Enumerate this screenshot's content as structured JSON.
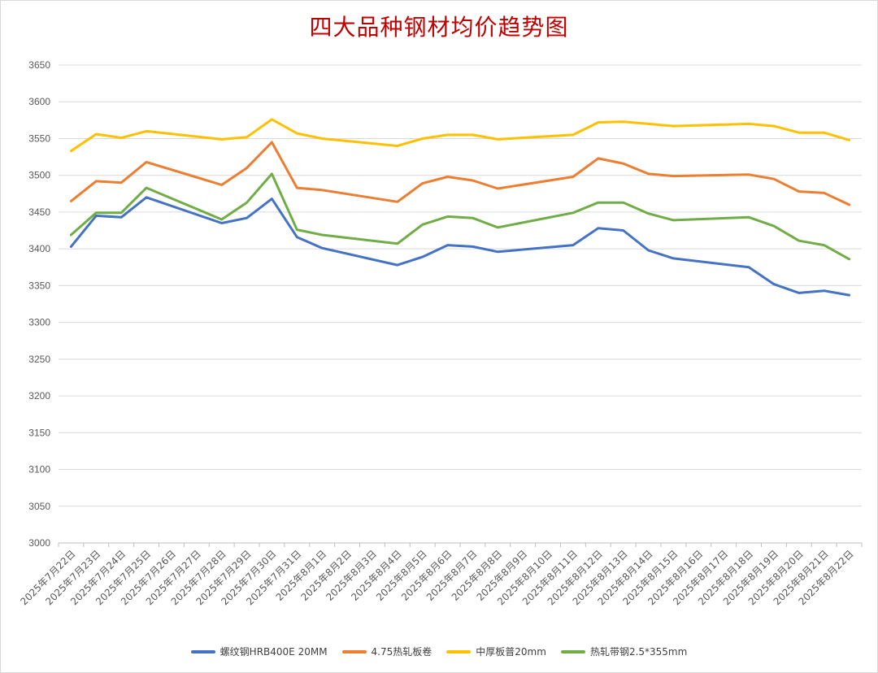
{
  "chart_data": {
    "type": "line",
    "title": "四大品种钢材均价趋势图",
    "xlabel": "",
    "ylabel": "",
    "ylim": [
      3000,
      3650
    ],
    "ytick_step": 50,
    "grid": true,
    "legend_position": "bottom",
    "categories": [
      "2025年7月22日",
      "2025年7月23日",
      "2025年7月24日",
      "2025年7月25日",
      "2025年7月26日",
      "2025年7月27日",
      "2025年7月28日",
      "2025年7月29日",
      "2025年7月30日",
      "2025年7月31日",
      "2025年8月1日",
      "2025年8月2日",
      "2025年8月3日",
      "2025年8月4日",
      "2025年8月5日",
      "2025年8月6日",
      "2025年8月7日",
      "2025年8月8日",
      "2025年8月9日",
      "2025年8月10日",
      "2025年8月11日",
      "2025年8月12日",
      "2025年8月13日",
      "2025年8月14日",
      "2025年8月15日",
      "2025年8月16日",
      "2025年8月17日",
      "2025年8月18日",
      "2025年8月19日",
      "2025年8月20日",
      "2025年8月21日",
      "2025年8月22日"
    ],
    "series": [
      {
        "name": "螺纹钢HRB400E 20MM",
        "color": "#4472c4",
        "points": [
          [
            "2025年7月22日",
            3403
          ],
          [
            "2025年7月23日",
            3445
          ],
          [
            "2025年7月24日",
            3443
          ],
          [
            "2025年7月25日",
            3470
          ],
          [
            "2025年7月28日",
            3435
          ],
          [
            "2025年7月29日",
            3442
          ],
          [
            "2025年7月30日",
            3468
          ],
          [
            "2025年7月31日",
            3416
          ],
          [
            "2025年8月1日",
            3401
          ],
          [
            "2025年8月4日",
            3378
          ],
          [
            "2025年8月5日",
            3389
          ],
          [
            "2025年8月6日",
            3405
          ],
          [
            "2025年8月7日",
            3403
          ],
          [
            "2025年8月8日",
            3396
          ],
          [
            "2025年8月11日",
            3405
          ],
          [
            "2025年8月12日",
            3428
          ],
          [
            "2025年8月13日",
            3425
          ],
          [
            "2025年8月14日",
            3398
          ],
          [
            "2025年8月15日",
            3387
          ],
          [
            "2025年8月18日",
            3375
          ],
          [
            "2025年8月19日",
            3352
          ],
          [
            "2025年8月20日",
            3340
          ],
          [
            "2025年8月21日",
            3343
          ],
          [
            "2025年8月22日",
            3337
          ]
        ]
      },
      {
        "name": "4.75热轧板卷",
        "color": "#ed7d31",
        "points": [
          [
            "2025年7月22日",
            3465
          ],
          [
            "2025年7月23日",
            3492
          ],
          [
            "2025年7月24日",
            3490
          ],
          [
            "2025年7月25日",
            3518
          ],
          [
            "2025年7月28日",
            3487
          ],
          [
            "2025年7月29日",
            3510
          ],
          [
            "2025年7月30日",
            3545
          ],
          [
            "2025年7月31日",
            3483
          ],
          [
            "2025年8月1日",
            3480
          ],
          [
            "2025年8月4日",
            3464
          ],
          [
            "2025年8月5日",
            3489
          ],
          [
            "2025年8月6日",
            3498
          ],
          [
            "2025年8月7日",
            3493
          ],
          [
            "2025年8月8日",
            3482
          ],
          [
            "2025年8月11日",
            3498
          ],
          [
            "2025年8月12日",
            3523
          ],
          [
            "2025年8月13日",
            3516
          ],
          [
            "2025年8月14日",
            3502
          ],
          [
            "2025年8月15日",
            3499
          ],
          [
            "2025年8月18日",
            3501
          ],
          [
            "2025年8月19日",
            3495
          ],
          [
            "2025年8月20日",
            3478
          ],
          [
            "2025年8月21日",
            3476
          ],
          [
            "2025年8月22日",
            3460
          ]
        ]
      },
      {
        "name": "中厚板普20mm",
        "color": "#ffc000",
        "points": [
          [
            "2025年7月22日",
            3533
          ],
          [
            "2025年7月23日",
            3556
          ],
          [
            "2025年7月24日",
            3551
          ],
          [
            "2025年7月25日",
            3560
          ],
          [
            "2025年7月28日",
            3549
          ],
          [
            "2025年7月29日",
            3552
          ],
          [
            "2025年7月30日",
            3576
          ],
          [
            "2025年7月31日",
            3557
          ],
          [
            "2025年8月1日",
            3550
          ],
          [
            "2025年8月4日",
            3540
          ],
          [
            "2025年8月5日",
            3550
          ],
          [
            "2025年8月6日",
            3555
          ],
          [
            "2025年8月7日",
            3555
          ],
          [
            "2025年8月8日",
            3549
          ],
          [
            "2025年8月11日",
            3555
          ],
          [
            "2025年8月12日",
            3572
          ],
          [
            "2025年8月13日",
            3573
          ],
          [
            "2025年8月14日",
            3570
          ],
          [
            "2025年8月15日",
            3567
          ],
          [
            "2025年8月18日",
            3570
          ],
          [
            "2025年8月19日",
            3567
          ],
          [
            "2025年8月20日",
            3558
          ],
          [
            "2025年8月21日",
            3558
          ],
          [
            "2025年8月22日",
            3548
          ]
        ]
      },
      {
        "name": "热轧带钢2.5*355mm",
        "color": "#70ad47",
        "points": [
          [
            "2025年7月22日",
            3419
          ],
          [
            "2025年7月23日",
            3449
          ],
          [
            "2025年7月24日",
            3449
          ],
          [
            "2025年7月25日",
            3483
          ],
          [
            "2025年7月28日",
            3440
          ],
          [
            "2025年7月29日",
            3463
          ],
          [
            "2025年7月30日",
            3502
          ],
          [
            "2025年7月31日",
            3426
          ],
          [
            "2025年8月1日",
            3419
          ],
          [
            "2025年8月4日",
            3407
          ],
          [
            "2025年8月5日",
            3433
          ],
          [
            "2025年8月6日",
            3444
          ],
          [
            "2025年8月7日",
            3442
          ],
          [
            "2025年8月8日",
            3429
          ],
          [
            "2025年8月11日",
            3449
          ],
          [
            "2025年8月12日",
            3463
          ],
          [
            "2025年8月13日",
            3463
          ],
          [
            "2025年8月14日",
            3448
          ],
          [
            "2025年8月15日",
            3439
          ],
          [
            "2025年8月18日",
            3443
          ],
          [
            "2025年8月19日",
            3431
          ],
          [
            "2025年8月20日",
            3411
          ],
          [
            "2025年8月21日",
            3405
          ],
          [
            "2025年8月22日",
            3386
          ]
        ]
      }
    ]
  }
}
